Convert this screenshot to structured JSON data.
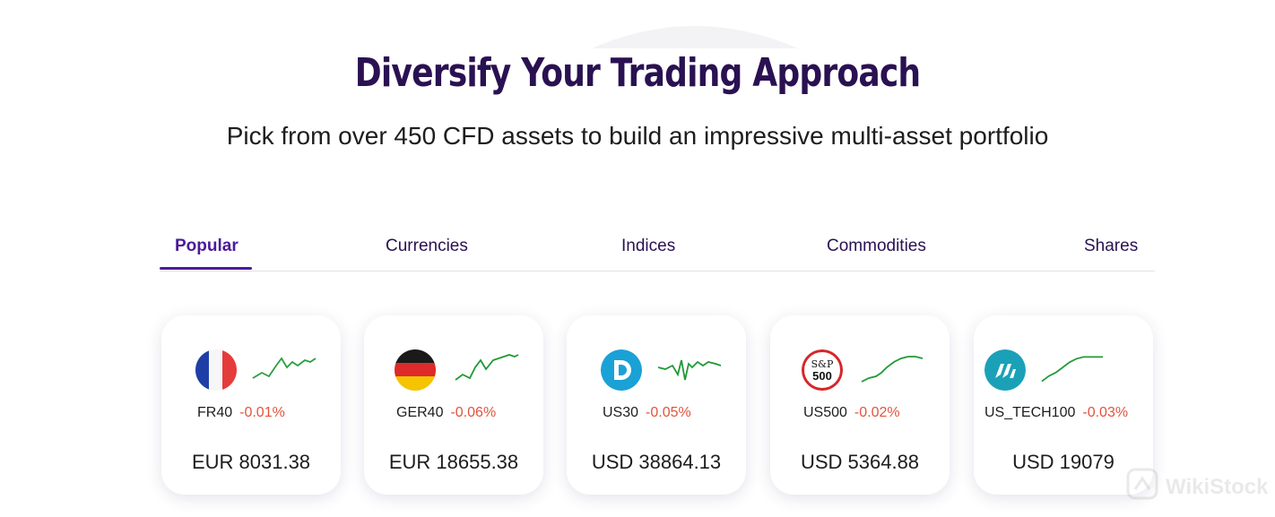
{
  "header": {
    "title": "Diversify Your Trading Approach",
    "subtitle": "Pick from over 450 CFD assets to build an impressive multi-asset portfolio"
  },
  "tabs": [
    {
      "label": "Popular",
      "active": true
    },
    {
      "label": "Currencies",
      "active": false
    },
    {
      "label": "Indices",
      "active": false
    },
    {
      "label": "Commodities",
      "active": false
    },
    {
      "label": "Shares",
      "active": false
    }
  ],
  "assets": [
    {
      "symbol": "FR40",
      "change": "-0.01%",
      "price": "EUR 8031.38",
      "icon": "france-flag-icon"
    },
    {
      "symbol": "GER40",
      "change": "-0.06%",
      "price": "EUR 18655.38",
      "icon": "germany-flag-icon"
    },
    {
      "symbol": "US30",
      "change": "-0.05%",
      "price": "USD 38864.13",
      "icon": "dow-jones-icon"
    },
    {
      "symbol": "US500",
      "change": "-0.02%",
      "price": "USD 5364.88",
      "icon": "sp500-icon"
    },
    {
      "symbol": "US_TECH100",
      "change": "-0.03%",
      "price": "USD 19079",
      "icon": "nasdaq-icon"
    }
  ],
  "sp500_logo": {
    "line1": "S&P",
    "line2": "500"
  },
  "watermark": {
    "text": "WikiStock"
  },
  "colors": {
    "title": "#2a1152",
    "tab_active": "#4b1a9a",
    "negative_change": "#e0543c",
    "sparkline": "#1f9a36"
  }
}
